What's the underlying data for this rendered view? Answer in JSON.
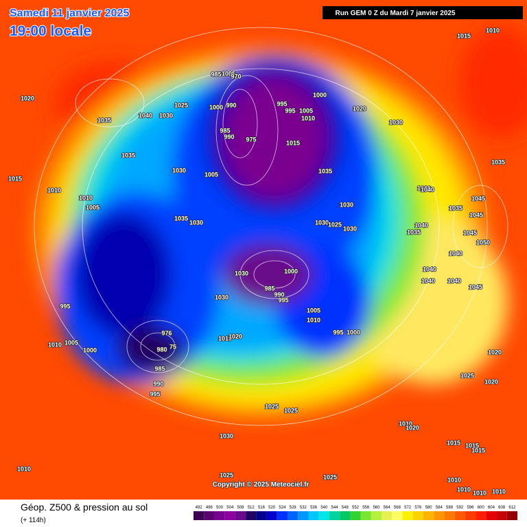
{
  "header": {
    "date": "Samedi 11 janvier 2025",
    "time": "19:00 locale",
    "run": "Run GEM 0 Z du Mardi 7 janvier 2025"
  },
  "map": {
    "copyright": "Copyright © 2025 Meteociel.fr",
    "isobar_labels": [
      1015,
      1010,
      1020,
      1035,
      1040,
      1030,
      1025,
      985,
      1005,
      970,
      1000,
      990,
      995,
      995,
      1005,
      1010,
      1000,
      1020,
      1030,
      985,
      990,
      975,
      1015,
      1035,
      1030,
      1005,
      1035,
      1035,
      1015,
      1010,
      1010,
      1005,
      1030,
      1040,
      1030,
      1035,
      1045,
      1045,
      1035,
      1030,
      1030,
      1025,
      1030,
      1040,
      1035,
      1045,
      1050,
      1040,
      1030,
      1000,
      985,
      990,
      995,
      1040,
      1040,
      1040,
      1045,
      1030,
      995,
      1005,
      1010,
      995,
      1000,
      976,
      980,
      75,
      1010,
      1020,
      1010,
      1005,
      1000,
      985,
      990,
      995,
      1020,
      1025,
      1020,
      1025,
      1025,
      1010,
      1020,
      1030,
      1015,
      1015,
      1015,
      1010,
      1025,
      1025,
      1010,
      1010,
      1010,
      1010
    ]
  },
  "legend": {
    "title": "Géop. Z500 & pression au sol",
    "subtitle": "(+ 114h)",
    "scale": [
      492,
      496,
      500,
      504,
      508,
      512,
      516,
      520,
      524,
      528,
      532,
      536,
      540,
      544,
      548,
      552,
      556,
      560,
      564,
      568,
      572,
      576,
      580,
      584,
      588,
      592,
      596,
      600,
      604,
      608,
      612
    ],
    "colors": [
      "#3c0050",
      "#5a0070",
      "#780090",
      "#8c00a0",
      "#6a0a8a",
      "#200060",
      "#00008c",
      "#0000c8",
      "#0030ff",
      "#0064ff",
      "#0096ff",
      "#00c8ff",
      "#00e6e6",
      "#00d2a0",
      "#00c864",
      "#32d232",
      "#78e632",
      "#b4f03c",
      "#e6f050",
      "#ffff64",
      "#fff000",
      "#ffd200",
      "#ffb400",
      "#ff9600",
      "#ff7800",
      "#ff5a00",
      "#ff3c00",
      "#ff1e00",
      "#e60000",
      "#c80000",
      "#960000"
    ]
  }
}
